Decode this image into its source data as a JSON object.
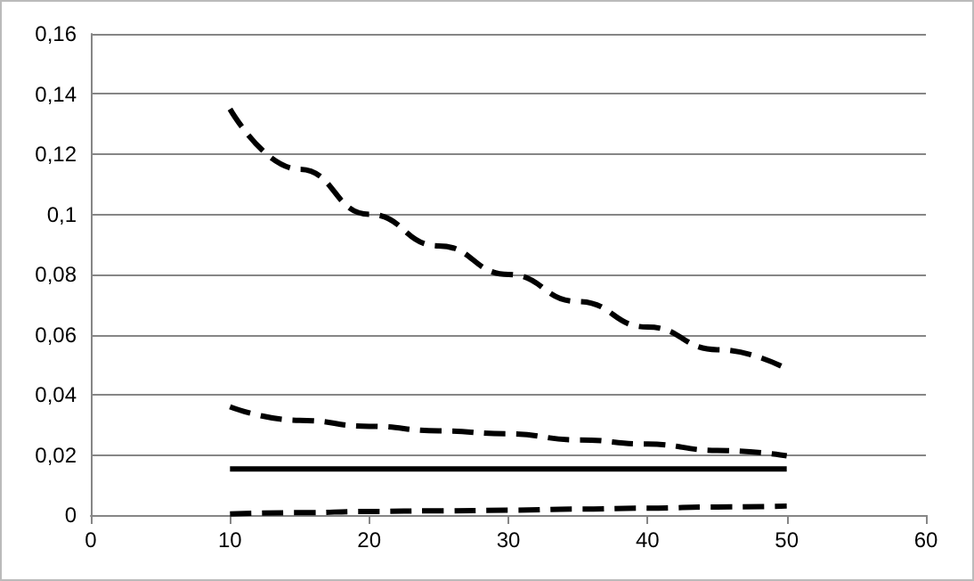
{
  "chart_data": {
    "type": "line",
    "x": [
      10,
      15,
      20,
      25,
      30,
      35,
      40,
      45,
      50
    ],
    "series": [
      {
        "color": "#000000",
        "line_style": "dashed",
        "values": [
          0.135,
          0.115,
          0.1,
          0.0895,
          0.08,
          0.071,
          0.0625,
          0.055,
          0.0486
        ]
      },
      {
        "color": "#000000",
        "line_style": "dashed",
        "values": [
          0.036,
          0.0315,
          0.0295,
          0.028,
          0.027,
          0.025,
          0.0236,
          0.0215,
          0.0197
        ]
      },
      {
        "color": "#000000",
        "line_style": "solid",
        "values": [
          0.0153,
          0.0153,
          0.0153,
          0.0153,
          0.0153,
          0.0153,
          0.0153,
          0.0153,
          0.0153
        ]
      },
      {
        "color": "#000000",
        "line_style": "dashed",
        "values": [
          0.0004,
          0.0008,
          0.0012,
          0.0014,
          0.0016,
          0.002,
          0.0023,
          0.0027,
          0.003
        ]
      }
    ],
    "xlim": [
      0,
      60
    ],
    "xticks": [
      0,
      10,
      20,
      30,
      40,
      50,
      60
    ],
    "ylim": [
      0,
      0.16
    ],
    "yticks": [
      {
        "value": 0,
        "label": "0"
      },
      {
        "value": 0.02,
        "label": "0,02"
      },
      {
        "value": 0.04,
        "label": "0,04"
      },
      {
        "value": 0.06,
        "label": "0,06"
      },
      {
        "value": 0.08,
        "label": "0,08"
      },
      {
        "value": 0.1,
        "label": "0,1"
      },
      {
        "value": 0.12,
        "label": "0,12"
      },
      {
        "value": 0.14,
        "label": "0,14"
      },
      {
        "value": 0.16,
        "label": "0,16"
      }
    ],
    "grid": "y",
    "marker": "none"
  }
}
